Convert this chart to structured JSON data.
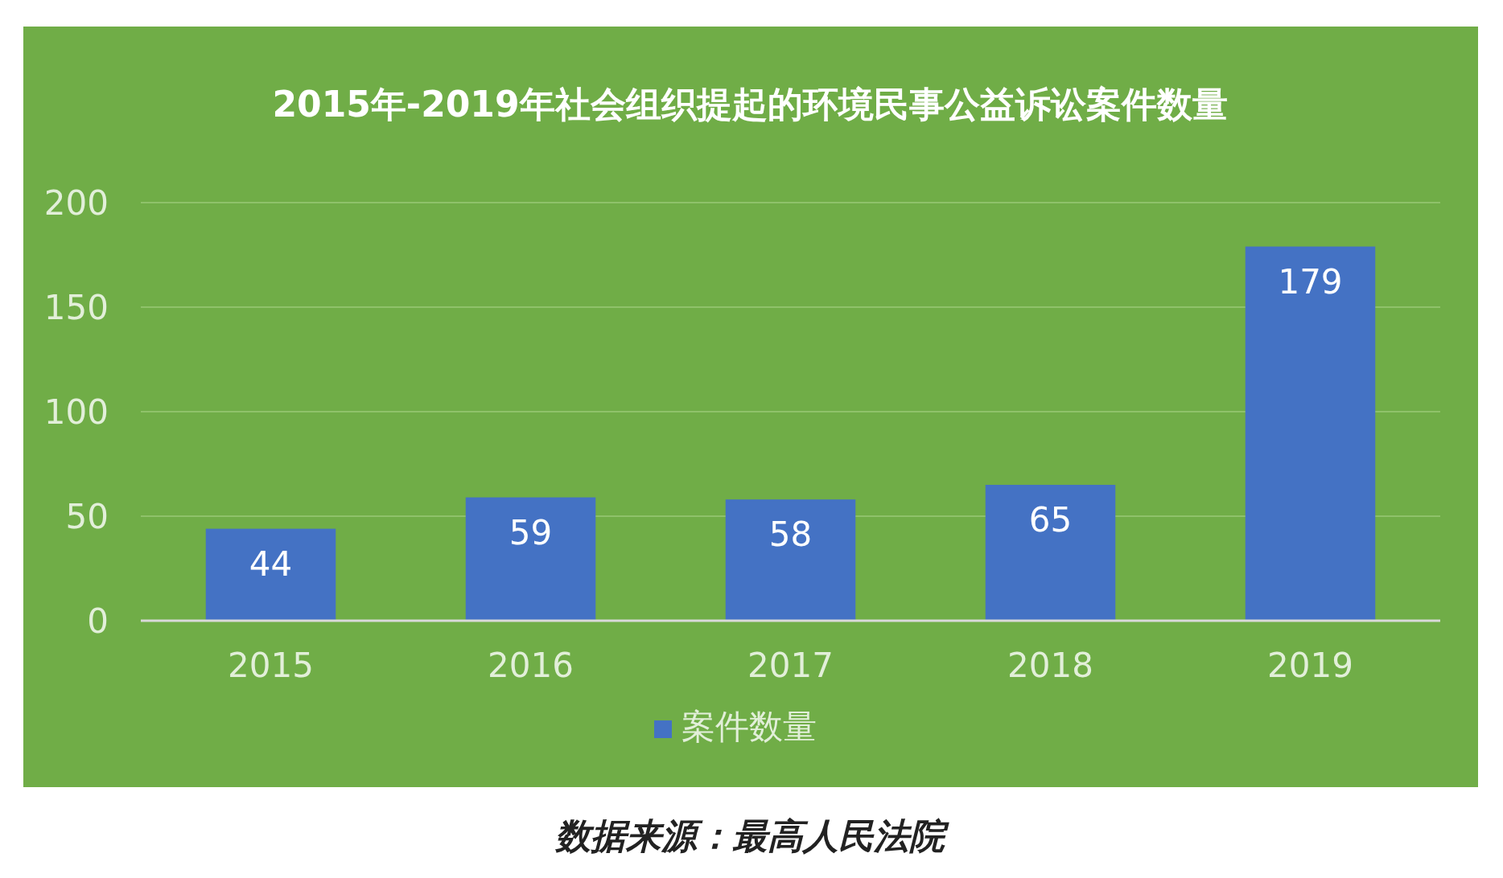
{
  "chart_data": {
    "type": "bar",
    "title": "2015年-2019年社会组织提起的环境民事公益诉讼案件数量",
    "categories": [
      "2015",
      "2016",
      "2017",
      "2018",
      "2019"
    ],
    "series": [
      {
        "name": "案件数量",
        "color": "#4472c4",
        "values": [
          44,
          59,
          58,
          65,
          179
        ]
      }
    ],
    "ylim": [
      0,
      200
    ],
    "yticks": [
      0,
      50,
      100,
      150,
      200
    ],
    "grid": "y",
    "legend": "bottom",
    "data_labels": true,
    "annotations": [
      "数据来源：最高人民法院"
    ]
  }
}
